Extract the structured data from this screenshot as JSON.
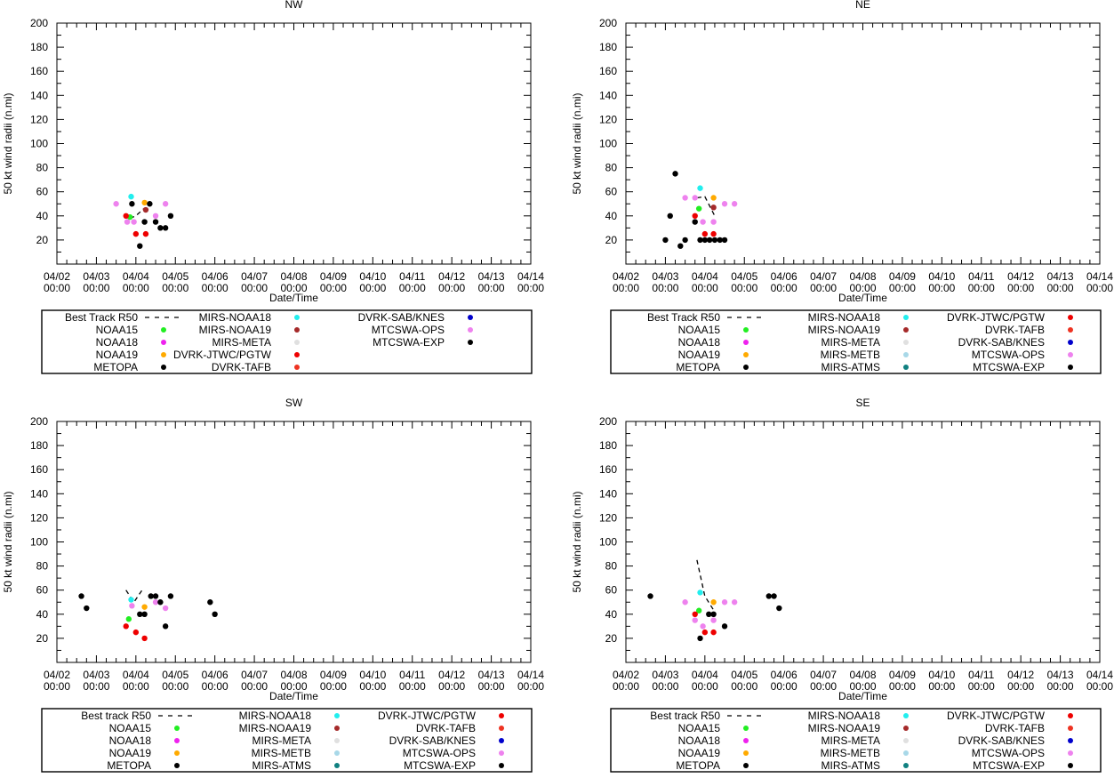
{
  "styles": {
    "frame_color": "#000000",
    "background": "#ffffff",
    "best_track_color": "#000000"
  },
  "legend_labels": {
    "best_track_nw": "Best Track R50",
    "best_track_std": "Best Track R50",
    "best_track_lower": "Best track R50",
    "noaa15": "NOAA15",
    "noaa18": "NOAA18",
    "noaa19": "NOAA19",
    "metopa": "METOPA",
    "mirs_noaa18": "MIRS-NOAA18",
    "mirs_noaa19": "MIRS-NOAA19",
    "mirs_meta": "MIRS-META",
    "mirs_metb": "MIRS-METB",
    "mirs_atms": "MIRS-ATMS",
    "dvrk_jtwc": "DVRK-JTWC/PGTW",
    "dvrk_tafb": "DVRK-TAFB",
    "dvrk_sab": "DVRK-SAB/KNES",
    "mtcswa_ops": "MTCSWA-OPS",
    "mtcswa_exp": "MTCSWA-EXP"
  },
  "legend_colors": {
    "noaa15": "#22ee22",
    "noaa18": "#ee22ee",
    "noaa19": "#ffaa00",
    "metopa": "#000000",
    "mirs_noaa18": "#22eeee",
    "mirs_noaa19": "#a52a2a",
    "mirs_meta": "#e0e0e0",
    "mirs_metb": "#a8d8e8",
    "mirs_atms": "#108080",
    "dvrk_jtwc": "#ee0000",
    "dvrk_tafb": "#ee3322",
    "dvrk_sab": "#0000cc",
    "mtcswa_ops": "#ee82ee",
    "mtcswa_exp": "#000000"
  },
  "chart_data": [
    {
      "type": "scatter",
      "title": "NW",
      "xlabel": "Date/Time",
      "ylabel": "50 kt wind radii (n.mi)",
      "x_tick_dates": [
        "04/02",
        "04/03",
        "04/04",
        "04/05",
        "04/06",
        "04/07",
        "04/08",
        "04/09",
        "04/10",
        "04/11",
        "04/12",
        "04/13",
        "04/14"
      ],
      "x_tick_times": [
        "00:00",
        "00:00",
        "00:00",
        "00:00",
        "00:00",
        "00:00",
        "00:00",
        "00:00",
        "00:00",
        "00:00",
        "00:00",
        "00:00",
        "00:00"
      ],
      "xlim_days": [
        0,
        12
      ],
      "y_ticks": [
        "20",
        "40",
        "60",
        "80",
        "100",
        "120",
        "140",
        "160",
        "180",
        "200"
      ],
      "ylim": [
        0,
        200
      ],
      "best_track": [
        [
          1.85,
          38
        ],
        [
          2.0,
          40
        ],
        [
          2.2,
          46
        ]
      ],
      "legend": {
        "columns": [
          [
            "best_track_nw",
            "noaa15",
            "noaa18",
            "noaa19",
            "metopa"
          ],
          [
            "mirs_noaa18",
            "mirs_noaa19",
            "mirs_meta",
            "dvrk_jtwc",
            "dvrk_tafb"
          ],
          [
            "dvrk_sab",
            "mtcswa_ops",
            "mtcswa_exp"
          ]
        ]
      },
      "series": [
        {
          "key": "mirs_noaa18",
          "points": [
            [
              1.88,
              56
            ]
          ]
        },
        {
          "key": "noaa15",
          "points": [
            [
              1.85,
              39
            ]
          ]
        },
        {
          "key": "noaa19",
          "points": [
            [
              2.22,
              51
            ]
          ]
        },
        {
          "key": "mirs_noaa19",
          "points": [
            [
              2.25,
              45
            ]
          ]
        },
        {
          "key": "dvrk_jtwc",
          "points": [
            [
              1.75,
              40
            ],
            [
              2.0,
              25
            ],
            [
              2.25,
              25
            ]
          ]
        },
        {
          "key": "mtcswa_ops",
          "points": [
            [
              1.5,
              50
            ],
            [
              1.78,
              35
            ],
            [
              1.95,
              35
            ],
            [
              2.5,
              40
            ],
            [
              2.75,
              50
            ]
          ]
        },
        {
          "key": "mtcswa_exp",
          "points": [
            [
              1.9,
              50
            ],
            [
              2.1,
              15
            ],
            [
              2.22,
              35
            ],
            [
              2.35,
              50
            ],
            [
              2.5,
              35
            ],
            [
              2.62,
              30
            ],
            [
              2.75,
              30
            ],
            [
              2.88,
              40
            ]
          ]
        }
      ]
    },
    {
      "type": "scatter",
      "title": "NE",
      "xlabel": "Date/Time",
      "ylabel": "50 kt wind radii (n.mi)",
      "x_tick_dates": [
        "04/02",
        "04/03",
        "04/04",
        "04/05",
        "04/06",
        "04/07",
        "04/08",
        "04/09",
        "04/10",
        "04/11",
        "04/12",
        "04/13",
        "04/14"
      ],
      "x_tick_times": [
        "00:00",
        "00:00",
        "00:00",
        "00:00",
        "00:00",
        "00:00",
        "00:00",
        "00:00",
        "00:00",
        "00:00",
        "00:00",
        "00:00",
        "00:00"
      ],
      "xlim_days": [
        0,
        12
      ],
      "y_ticks": [
        "20",
        "40",
        "60",
        "80",
        "100",
        "120",
        "140",
        "160",
        "180",
        "200"
      ],
      "ylim": [
        0,
        200
      ],
      "best_track": [
        [
          1.8,
          55
        ],
        [
          2.0,
          56
        ],
        [
          2.25,
          40
        ]
      ],
      "legend": {
        "columns": [
          [
            "best_track_std",
            "noaa15",
            "noaa18",
            "noaa19",
            "metopa"
          ],
          [
            "mirs_noaa18",
            "mirs_noaa19",
            "mirs_meta",
            "mirs_metb",
            "mirs_atms"
          ],
          [
            "dvrk_jtwc",
            "dvrk_tafb",
            "dvrk_sab",
            "mtcswa_ops",
            "mtcswa_exp"
          ]
        ]
      },
      "series": [
        {
          "key": "mirs_noaa18",
          "points": [
            [
              1.88,
              63
            ]
          ]
        },
        {
          "key": "noaa15",
          "points": [
            [
              1.85,
              46
            ]
          ]
        },
        {
          "key": "noaa19",
          "points": [
            [
              2.22,
              55
            ]
          ]
        },
        {
          "key": "mirs_noaa19",
          "points": [
            [
              2.22,
              47
            ]
          ]
        },
        {
          "key": "dvrk_jtwc",
          "points": [
            [
              1.75,
              40
            ],
            [
              2.0,
              25
            ],
            [
              2.22,
              25
            ]
          ]
        },
        {
          "key": "mtcswa_ops",
          "points": [
            [
              1.5,
              55
            ],
            [
              1.75,
              55
            ],
            [
              1.95,
              35
            ],
            [
              2.22,
              35
            ],
            [
              2.5,
              50
            ],
            [
              2.75,
              50
            ]
          ]
        },
        {
          "key": "mtcswa_exp",
          "points": [
            [
              1.0,
              20
            ],
            [
              1.12,
              40
            ],
            [
              1.25,
              75
            ],
            [
              1.38,
              15
            ],
            [
              1.5,
              20
            ],
            [
              1.75,
              35
            ],
            [
              1.88,
              20
            ],
            [
              2.0,
              20
            ],
            [
              2.12,
              20
            ],
            [
              2.25,
              20
            ],
            [
              2.38,
              20
            ],
            [
              2.5,
              20
            ]
          ]
        }
      ]
    },
    {
      "type": "scatter",
      "title": "SW",
      "xlabel": "Date/Time",
      "ylabel": "50 kt wind radii (n.mi)",
      "x_tick_dates": [
        "04/02",
        "04/03",
        "04/04",
        "04/05",
        "04/06",
        "04/07",
        "04/08",
        "04/09",
        "04/10",
        "04/11",
        "04/12",
        "04/13",
        "04/14"
      ],
      "x_tick_times": [
        "00:00",
        "00:00",
        "00:00",
        "00:00",
        "00:00",
        "00:00",
        "00:00",
        "00:00",
        "00:00",
        "00:00",
        "00:00",
        "00:00",
        "00:00"
      ],
      "xlim_days": [
        0,
        12
      ],
      "y_ticks": [
        "20",
        "40",
        "60",
        "80",
        "100",
        "120",
        "140",
        "160",
        "180",
        "200"
      ],
      "ylim": [
        0,
        200
      ],
      "best_track": [
        [
          1.75,
          60
        ],
        [
          1.95,
          50
        ],
        [
          2.2,
          62
        ]
      ],
      "legend": {
        "columns": [
          [
            "best_track_lower",
            "noaa15",
            "noaa18",
            "noaa19",
            "metopa"
          ],
          [
            "mirs_noaa18",
            "mirs_noaa19",
            "mirs_meta",
            "mirs_metb",
            "mirs_atms"
          ],
          [
            "dvrk_jtwc",
            "dvrk_tafb",
            "dvrk_sab",
            "mtcswa_ops",
            "mtcswa_exp"
          ]
        ]
      },
      "series": [
        {
          "key": "mirs_noaa18",
          "points": [
            [
              1.88,
              52
            ]
          ]
        },
        {
          "key": "noaa15",
          "points": [
            [
              1.82,
              36
            ]
          ]
        },
        {
          "key": "noaa19",
          "points": [
            [
              2.22,
              46
            ]
          ]
        },
        {
          "key": "dvrk_jtwc",
          "points": [
            [
              1.75,
              30
            ],
            [
              2.0,
              25
            ],
            [
              2.22,
              20
            ]
          ]
        },
        {
          "key": "mtcswa_ops",
          "points": [
            [
              1.9,
              47
            ],
            [
              2.5,
              50
            ],
            [
              2.75,
              45
            ]
          ]
        },
        {
          "key": "mtcswa_exp",
          "points": [
            [
              0.62,
              55
            ],
            [
              0.75,
              45
            ],
            [
              2.1,
              40
            ],
            [
              2.22,
              40
            ],
            [
              2.38,
              55
            ],
            [
              2.5,
              55
            ],
            [
              2.62,
              50
            ],
            [
              2.75,
              30
            ],
            [
              2.88,
              55
            ],
            [
              3.88,
              50
            ],
            [
              4.0,
              40
            ]
          ]
        }
      ]
    },
    {
      "type": "scatter",
      "title": "SE",
      "xlabel": "Date/Time",
      "ylabel": "50 kt wind radii (n.mi)",
      "x_tick_dates": [
        "04/02",
        "04/03",
        "04/04",
        "04/05",
        "04/06",
        "04/07",
        "04/08",
        "04/09",
        "04/10",
        "04/11",
        "04/12",
        "04/13",
        "04/14"
      ],
      "x_tick_times": [
        "00:00",
        "00:00",
        "00:00",
        "00:00",
        "00:00",
        "00:00",
        "00:00",
        "00:00",
        "00:00",
        "00:00",
        "00:00",
        "00:00",
        "00:00"
      ],
      "xlim_days": [
        0,
        12
      ],
      "y_ticks": [
        "20",
        "40",
        "60",
        "80",
        "100",
        "120",
        "140",
        "160",
        "180",
        "200"
      ],
      "ylim": [
        0,
        200
      ],
      "best_track": [
        [
          1.8,
          85
        ],
        [
          2.0,
          55
        ],
        [
          2.25,
          42
        ]
      ],
      "legend": {
        "columns": [
          [
            "best_track_lower",
            "noaa15",
            "noaa18",
            "noaa19",
            "metopa"
          ],
          [
            "mirs_noaa18",
            "mirs_noaa19",
            "mirs_meta",
            "mirs_metb",
            "mirs_atms"
          ],
          [
            "dvrk_jtwc",
            "dvrk_tafb",
            "dvrk_sab",
            "mtcswa_ops",
            "mtcswa_exp"
          ]
        ]
      },
      "series": [
        {
          "key": "mirs_noaa18",
          "points": [
            [
              1.88,
              58
            ]
          ]
        },
        {
          "key": "noaa15",
          "points": [
            [
              1.85,
              43
            ]
          ]
        },
        {
          "key": "noaa19",
          "points": [
            [
              2.22,
              50
            ]
          ]
        },
        {
          "key": "dvrk_jtwc",
          "points": [
            [
              1.75,
              40
            ],
            [
              2.0,
              25
            ],
            [
              2.22,
              25
            ]
          ]
        },
        {
          "key": "mtcswa_ops",
          "points": [
            [
              1.5,
              50
            ],
            [
              1.75,
              35
            ],
            [
              1.95,
              30
            ],
            [
              2.22,
              35
            ],
            [
              2.5,
              50
            ],
            [
              2.75,
              50
            ]
          ]
        },
        {
          "key": "mtcswa_exp",
          "points": [
            [
              0.62,
              55
            ],
            [
              1.88,
              20
            ],
            [
              2.1,
              40
            ],
            [
              2.22,
              40
            ],
            [
              2.5,
              30
            ],
            [
              3.62,
              55
            ],
            [
              3.75,
              55
            ],
            [
              3.88,
              45
            ]
          ]
        }
      ]
    }
  ]
}
